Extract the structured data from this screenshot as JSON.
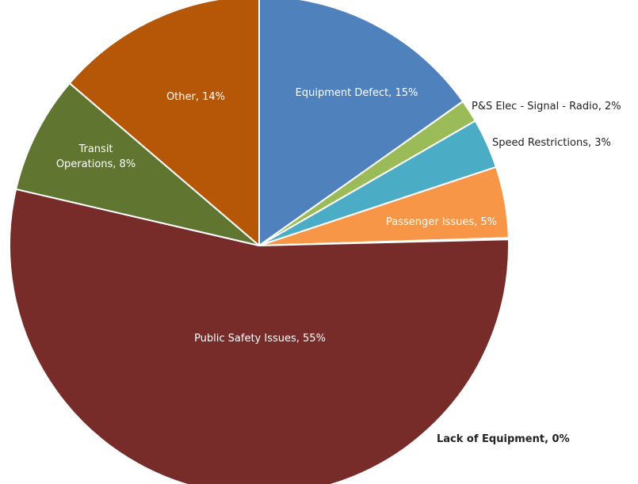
{
  "chart_data": {
    "type": "pie",
    "slices": [
      {
        "label": "Equipment Defect, 15%",
        "value": 15.5,
        "color": "#4f81bd"
      },
      {
        "label": "P&S Elec - Signal - Radio, 2%",
        "value": 1.5,
        "color": "#9bbb59"
      },
      {
        "label": "Speed Restrictions, 3%",
        "value": 3.3,
        "color": "#4bacc6"
      },
      {
        "label": "Passenger Issues, 5%",
        "value": 4.7,
        "color": "#f79646"
      },
      {
        "label": "Lack of Equipment, 0%",
        "value": 0.1,
        "color": "#7f7f7f"
      },
      {
        "label": "Public Safety Issues, 55%",
        "value": 55.1,
        "color": "#772c2a"
      },
      {
        "label": "Transit Operations, 8%",
        "value": 7.8,
        "color": "#5f7530"
      },
      {
        "label": "Other, 14%",
        "value": 14.0,
        "color": "#b65708"
      }
    ]
  }
}
